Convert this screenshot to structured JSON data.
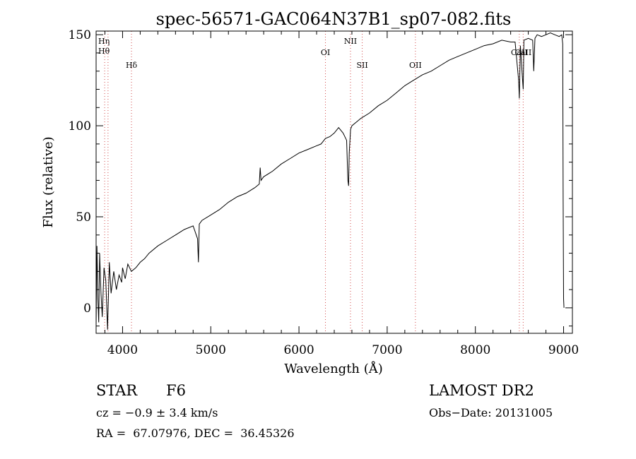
{
  "chart_data": {
    "type": "line",
    "title": "spec-56571-GAC064N37B1_sp07-082.fits",
    "xlabel": "Wavelength (Å)",
    "ylabel": "Flux (relative)",
    "xlim": [
      3700,
      9100
    ],
    "ylim": [
      -14,
      152
    ],
    "grid": false,
    "xticks": [
      4000,
      5000,
      6000,
      7000,
      8000,
      9000
    ],
    "yticks": [
      0,
      50,
      100,
      150
    ],
    "series": [
      {
        "x": [
          3700,
          3710,
          3720,
          3730,
          3740,
          3755,
          3770,
          3790,
          3810,
          3830,
          3850,
          3870,
          3900,
          3930,
          3960,
          3990,
          4000,
          4030,
          4060,
          4100,
          4150,
          4200,
          4250,
          4300,
          4400,
          4500,
          4600,
          4700,
          4800,
          4850,
          4860,
          4870,
          4900,
          5000,
          5100,
          5200,
          5300,
          5400,
          5500,
          5550,
          5560,
          5570,
          5600,
          5700,
          5800,
          5900,
          6000,
          6100,
          6200,
          6250,
          6300,
          6350,
          6400,
          6450,
          6500,
          6540,
          6555,
          6563,
          6570,
          6585,
          6600,
          6700,
          6800,
          6900,
          7000,
          7100,
          7200,
          7300,
          7400,
          7500,
          7600,
          7700,
          7800,
          7900,
          8000,
          8100,
          8200,
          8300,
          8400,
          8450,
          8490,
          8498,
          8510,
          8535,
          8542,
          8550,
          8600,
          8650,
          8662,
          8675,
          8700,
          8750,
          8800,
          8850,
          8900,
          8950,
          8980,
          8990,
          8995,
          9000,
          9005
        ],
        "y": [
          -10,
          34,
          5,
          -8,
          30,
          8,
          -5,
          22,
          15,
          -12,
          25,
          8,
          20,
          10,
          18,
          14,
          22,
          16,
          24,
          20,
          22,
          25,
          27,
          30,
          34,
          37,
          40,
          43,
          45,
          38,
          25,
          46,
          48,
          51,
          54,
          58,
          61,
          63,
          66,
          68,
          77,
          70,
          72,
          75,
          79,
          82,
          85,
          87,
          89,
          90,
          93,
          94,
          96,
          99,
          96,
          92,
          70,
          67,
          85,
          98,
          100,
          104,
          107,
          111,
          114,
          118,
          122,
          125,
          128,
          130,
          133,
          136,
          138,
          140,
          142,
          144,
          145,
          147,
          146,
          146,
          125,
          115,
          144,
          125,
          120,
          147,
          148,
          147,
          130,
          148,
          150,
          149,
          150,
          151,
          150,
          149,
          150,
          145,
          60,
          5,
          0
        ]
      }
    ],
    "line_markers": [
      {
        "label": "Hη",
        "x": 3835
      },
      {
        "label": "Hθ",
        "x": 3797
      },
      {
        "label": "Hδ",
        "x": 4101
      },
      {
        "label": "OI",
        "x": 6300
      },
      {
        "label": "NII",
        "x": 6584
      },
      {
        "label": "SII",
        "x": 6717
      },
      {
        "label": "OII",
        "x": 7320
      },
      {
        "label": "CaII",
        "x": 8498
      },
      {
        "label": "CaII",
        "x": 8542
      }
    ]
  },
  "info": {
    "class_label": "STAR",
    "subclass": "F6",
    "cz": "cz = −0.9 ± 3.4 km/s",
    "coords": "RA =  67.07976, DEC =  36.45326",
    "survey": "LAMOST DR2",
    "obs_date": "Obs−Date: 20131005"
  }
}
